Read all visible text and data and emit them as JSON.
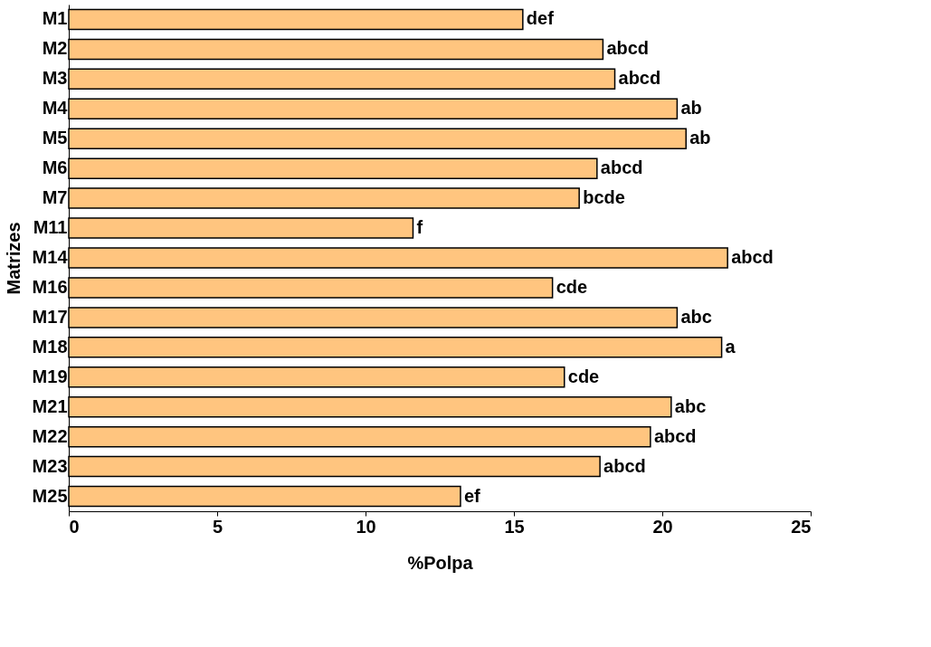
{
  "chart_data": {
    "type": "bar",
    "orientation": "horizontal",
    "xlabel": "%Polpa",
    "ylabel": "Matrizes",
    "categories": [
      "M1",
      "M2",
      "M3",
      "M4",
      "M5",
      "M6",
      "M7",
      "M11",
      "M14",
      "M16",
      "M17",
      "M18",
      "M19",
      "M21",
      "M22",
      "M23",
      "M25"
    ],
    "values": [
      15.3,
      18.0,
      18.4,
      20.5,
      20.8,
      17.8,
      17.2,
      11.6,
      22.2,
      16.3,
      20.5,
      22.0,
      16.7,
      20.3,
      19.6,
      17.9,
      13.2
    ],
    "value_labels": [
      "def",
      "abcd",
      "abcd",
      "ab",
      "ab",
      "abcd",
      "bcde",
      "f",
      "abcd",
      "cde",
      "abc",
      "a",
      "cde",
      "abc",
      "abcd",
      "abcd",
      "ef"
    ],
    "color": "#ffc57f",
    "xlim": [
      0,
      25
    ],
    "xticks": [
      0,
      5,
      10,
      15,
      20,
      25
    ],
    "grid": false
  }
}
